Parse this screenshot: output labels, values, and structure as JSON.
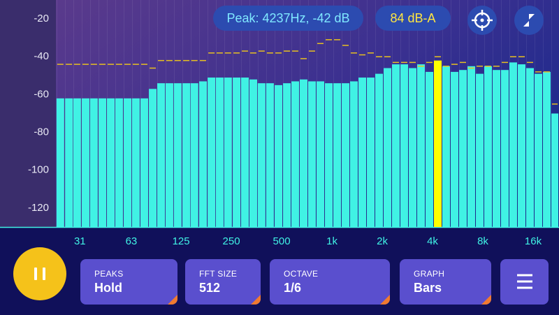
{
  "chart_data": {
    "type": "bar",
    "log_x": true,
    "x": [
      23.8,
      26.8,
      30.0,
      33.7,
      37.8,
      42.5,
      47.7,
      53.5,
      60.1,
      67.4,
      75.7,
      85.0,
      95.4,
      107,
      120,
      135,
      151,
      170,
      191,
      214,
      240,
      270,
      303,
      340,
      381,
      428,
      481,
      540,
      606,
      680,
      763,
      857,
      962,
      1080,
      1212,
      1360,
      1527,
      1714,
      1924,
      2160,
      2424,
      2721,
      3054,
      3428,
      3848,
      4319,
      4848,
      5442,
      6109,
      6857,
      7697,
      8640,
      9698,
      10886,
      12219,
      13716,
      15396,
      17282,
      19399,
      21775
    ],
    "values": [
      -62,
      -62,
      -62,
      -62,
      -62,
      -62,
      -62,
      -62,
      -62,
      -62,
      -62,
      -57,
      -54,
      -54,
      -54,
      -54,
      -54,
      -53,
      -51,
      -51,
      -51,
      -51,
      -51,
      -52,
      -54,
      -54,
      -55,
      -54,
      -53,
      -52,
      -53,
      -53,
      -54,
      -54,
      -54,
      -53,
      -51,
      -51,
      -49,
      -46,
      -44,
      -44,
      -46,
      -44,
      -48,
      -42,
      -45,
      -48,
      -47,
      -45,
      -49,
      -45,
      -47,
      -47,
      -43,
      -44,
      -46,
      -49,
      -48,
      -70
    ],
    "peaks": [
      -44,
      -44,
      -44,
      -44,
      -44,
      -44,
      -44,
      -44,
      -44,
      -44,
      -44,
      -46,
      -42,
      -42,
      -42,
      -42,
      -42,
      -42,
      -38,
      -38,
      -38,
      -38,
      -37,
      -38,
      -37,
      -38,
      -38,
      -37,
      -37,
      -41,
      -37,
      -33,
      -31,
      -31,
      -34,
      -38,
      -39,
      -38,
      -40,
      -40,
      -43,
      -43,
      -43,
      -45,
      -43,
      -40,
      -45,
      -44,
      -43,
      -46,
      -45,
      -45,
      -45,
      -43,
      -40,
      -40,
      -43,
      -48,
      -48,
      -65
    ],
    "color": "#40f2e4",
    "max_color": "#ffff00",
    "peak_color": "#e8c020",
    "xlim": [
      22.5,
      22850
    ],
    "xticks": [
      31,
      63,
      125,
      250,
      500,
      {
        "value": 1000,
        "label": "1k"
      },
      {
        "value": 2000,
        "label": "2k"
      },
      {
        "value": 4000,
        "label": "4k"
      },
      {
        "value": 8000,
        "label": "8k"
      },
      {
        "value": 16000,
        "label": "16k"
      }
    ],
    "ylim": [
      -130,
      -10
    ],
    "yticks": [
      -20,
      -40,
      -60,
      -80,
      -100,
      -120
    ]
  },
  "status": {
    "peak": "Peak: 4237Hz, -42 dB",
    "level": "84 dB-A"
  },
  "controls": [
    {
      "label": "PEAKS",
      "value": "Hold"
    },
    {
      "label": "FFT SIZE",
      "value": "512"
    },
    {
      "label": "OCTAVE",
      "value": "1/6"
    },
    {
      "label": "GRAPH",
      "value": "Bars"
    }
  ]
}
